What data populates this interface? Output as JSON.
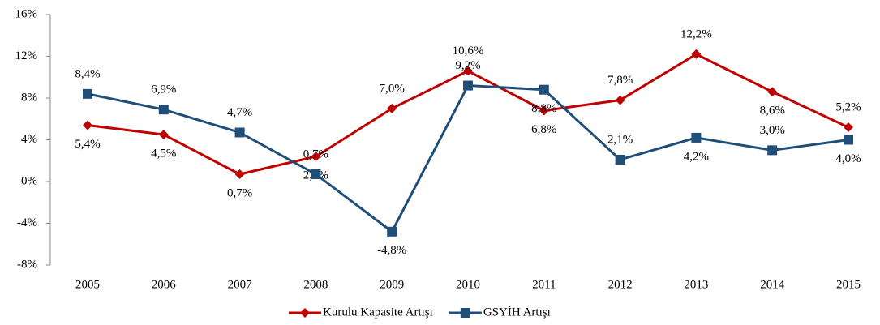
{
  "chart_data": {
    "type": "line",
    "categories": [
      "2005",
      "2006",
      "2007",
      "2008",
      "2009",
      "2010",
      "2011",
      "2012",
      "2013",
      "2014",
      "2015"
    ],
    "series": [
      {
        "name": "Kurulu Kapasite Artışı",
        "color": "#c00000",
        "marker": "diamond",
        "values": [
          5.4,
          4.5,
          0.7,
          2.4,
          7.0,
          10.6,
          6.8,
          7.8,
          12.2,
          8.6,
          5.2
        ],
        "value_labels": [
          "5,4%",
          "4,5%",
          "0,7%",
          "2,4%",
          "7,0%",
          "10,6%",
          "6,8%",
          "7,8%",
          "12,2%",
          "8,6%",
          "5,2%"
        ]
      },
      {
        "name": "GSYİH Artışı",
        "color": "#1f4e79",
        "marker": "square",
        "values": [
          8.4,
          6.9,
          4.7,
          0.7,
          -4.8,
          9.2,
          8.8,
          2.1,
          4.2,
          3.0,
          4.0
        ],
        "value_labels": [
          "8,4%",
          "6,9%",
          "4,7%",
          "0,7%",
          "-4,8%",
          "9,2%",
          "8,8%",
          "2,1%",
          "4,2%",
          "3,0%",
          "4,0%"
        ]
      }
    ],
    "ylim": [
      -8,
      16
    ],
    "yticks": [
      {
        "value": -8,
        "label": "-8%"
      },
      {
        "value": -4,
        "label": "-4%"
      },
      {
        "value": 0,
        "label": "0%"
      },
      {
        "value": 4,
        "label": "4%"
      },
      {
        "value": 8,
        "label": "8%"
      },
      {
        "value": 12,
        "label": "12%"
      },
      {
        "value": 16,
        "label": "16%"
      }
    ],
    "grid": false,
    "legend": "bottom"
  }
}
